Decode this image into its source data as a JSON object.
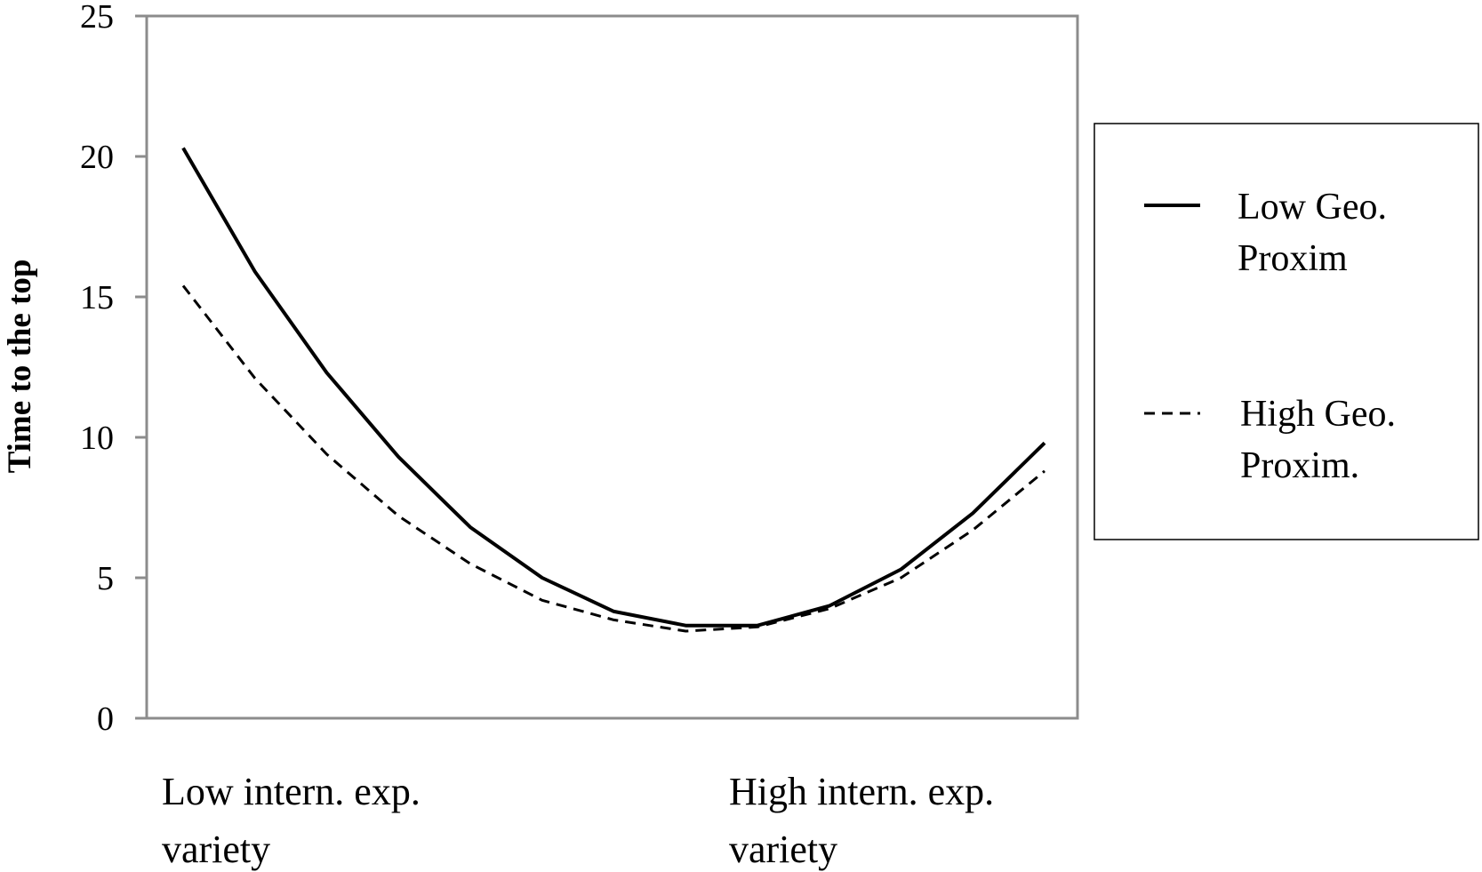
{
  "chart_data": {
    "type": "line",
    "ylabel": "Time to the top",
    "xlabel": "",
    "ylim": [
      0,
      25
    ],
    "yticks": [
      0,
      5,
      10,
      15,
      20,
      25
    ],
    "x_category_labels": [
      [
        "Low intern. exp.",
        "variety"
      ],
      [
        "High intern. exp.",
        "variety"
      ]
    ],
    "grid": false,
    "legend_placement": "right",
    "series": [
      {
        "name": [
          "Low Geo.",
          "Proxim"
        ],
        "style": "solid",
        "color": "#000000",
        "values": [
          20.3,
          15.9,
          12.3,
          9.3,
          6.8,
          5.0,
          3.8,
          3.3,
          3.3,
          4.0,
          5.3,
          7.3,
          9.8
        ]
      },
      {
        "name": [
          "High Geo.",
          "Proxim."
        ],
        "style": "dashed",
        "color": "#000000",
        "values": [
          15.4,
          12.1,
          9.4,
          7.2,
          5.5,
          4.2,
          3.5,
          3.1,
          3.25,
          3.9,
          5.0,
          6.7,
          8.8
        ]
      }
    ]
  }
}
